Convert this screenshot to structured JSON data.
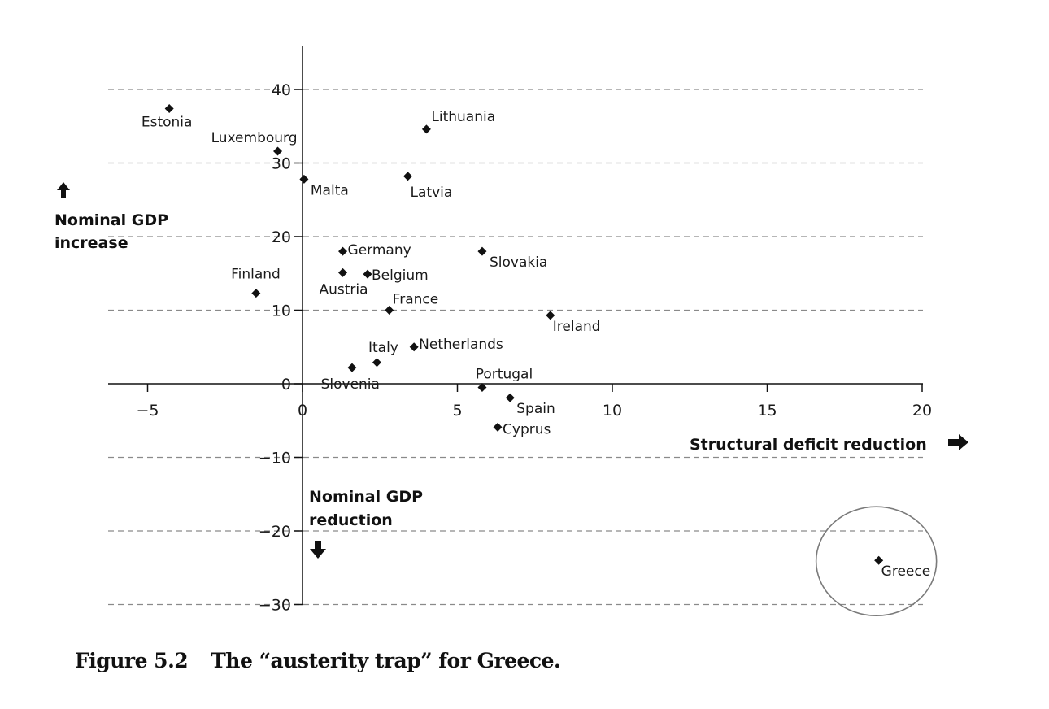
{
  "chart_data": {
    "type": "scatter",
    "title": "",
    "xlabel": "Structural deficit reduction",
    "ylabel_top": [
      "Nominal GDP",
      "increase"
    ],
    "ylabel_bottom": [
      "Nominal GDP",
      "reduction"
    ],
    "xlim": [
      -6.3,
      20
    ],
    "ylim": [
      -30,
      46
    ],
    "x_ticks": [
      -5,
      0,
      5,
      10,
      15,
      20
    ],
    "x_tick_labels": [
      "−5",
      "0",
      "5",
      "10",
      "15",
      "20"
    ],
    "y_ticks": [
      40,
      30,
      20,
      10,
      0,
      -10,
      -20,
      -30
    ],
    "y_tick_labels": [
      "40",
      "30",
      "20",
      "10",
      "0",
      "−10",
      "−20",
      "−30"
    ],
    "grid": "horizontal-dashed",
    "highlight": "Greece",
    "colors": {
      "marker": "#111111",
      "grid": "#8a8a8a",
      "axis": "#111111",
      "circle": "#7a7a7a"
    },
    "points": [
      {
        "name": "Estonia",
        "x": -4.3,
        "y": 37.4,
        "label_pos": "below"
      },
      {
        "name": "Luxembourg",
        "x": -0.8,
        "y": 31.6,
        "label_pos": "above-left"
      },
      {
        "name": "Malta",
        "x": 0.05,
        "y": 27.8,
        "label_pos": "below-right"
      },
      {
        "name": "Lithuania",
        "x": 4.0,
        "y": 34.6,
        "label_pos": "above-right"
      },
      {
        "name": "Latvia",
        "x": 3.4,
        "y": 28.2,
        "label_pos": "below-right"
      },
      {
        "name": "Germany",
        "x": 1.3,
        "y": 18.0,
        "label_pos": "right"
      },
      {
        "name": "Slovakia",
        "x": 5.8,
        "y": 18.0,
        "label_pos": "below-right"
      },
      {
        "name": "Austria",
        "x": 1.3,
        "y": 15.1,
        "label_pos": "below-left"
      },
      {
        "name": "Belgium",
        "x": 2.1,
        "y": 14.9,
        "label_pos": "right"
      },
      {
        "name": "Finland",
        "x": -1.5,
        "y": 12.3,
        "label_pos": "above-left"
      },
      {
        "name": "France",
        "x": 2.8,
        "y": 10.0,
        "label_pos": "above-right"
      },
      {
        "name": "Ireland",
        "x": 8.0,
        "y": 9.3,
        "label_pos": "below-right"
      },
      {
        "name": "Netherlands",
        "x": 3.6,
        "y": 5.0,
        "label_pos": "right"
      },
      {
        "name": "Italy",
        "x": 2.4,
        "y": 2.9,
        "label_pos": "above"
      },
      {
        "name": "Slovenia",
        "x": 1.6,
        "y": 2.2,
        "label_pos": "below-left"
      },
      {
        "name": "Portugal",
        "x": 5.8,
        "y": -0.5,
        "label_pos": "above"
      },
      {
        "name": "Spain",
        "x": 6.7,
        "y": -1.9,
        "label_pos": "below-right"
      },
      {
        "name": "Cyprus",
        "x": 6.3,
        "y": -5.9,
        "label_pos": "right"
      },
      {
        "name": "Greece",
        "x": 18.6,
        "y": -24.0,
        "label_pos": "below-right"
      }
    ]
  },
  "caption": {
    "number": "Figure 5.2",
    "text": "The “austerity trap” for Greece."
  }
}
